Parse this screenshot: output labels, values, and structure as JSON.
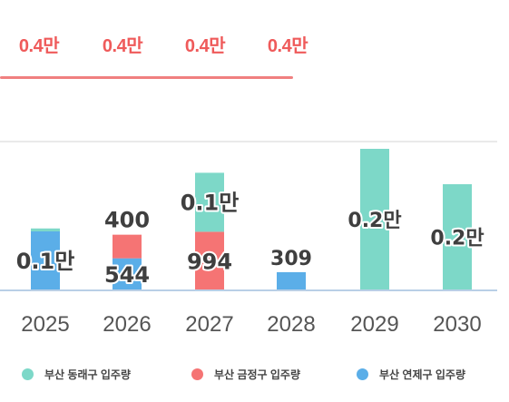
{
  "top_values": [
    "0.4만",
    "0.4만",
    "0.4만",
    "0.4만"
  ],
  "colors": {
    "dongnae": "#7dd8c8",
    "geumjeong": "#f57474",
    "yeonje": "#5baee8",
    "top_text": "#ef5a5a",
    "axis": "#b9cfe6",
    "grid": "#e4e4e4"
  },
  "legend": [
    {
      "label": "부산 동래구 입주량",
      "color_key": "dongnae"
    },
    {
      "label": "부산 금정구 입주량",
      "color_key": "geumjeong"
    },
    {
      "label": "부산 연제구 입주량",
      "color_key": "yeonje"
    }
  ],
  "chart_data": {
    "type": "bar",
    "stacked": true,
    "title": "",
    "xlabel": "",
    "ylabel": "",
    "categories": [
      "2025",
      "2026",
      "2027",
      "2028",
      "2029",
      "2030"
    ],
    "series": [
      {
        "name": "부산 연제구 입주량",
        "color_key": "yeonje",
        "values": [
          1000,
          544,
          0,
          309,
          0,
          0
        ]
      },
      {
        "name": "부산 금정구 입주량",
        "color_key": "geumjeong",
        "values": [
          0,
          400,
          994,
          0,
          0,
          0
        ]
      },
      {
        "name": "부산 동래구 입주량",
        "color_key": "dongnae",
        "values": [
          50,
          0,
          1000,
          0,
          2400,
          1800
        ]
      }
    ],
    "data_labels": [
      {
        "text": "0.1만",
        "category": "2025",
        "series": "부산 연제구 입주량",
        "size": "large"
      },
      {
        "text": "544",
        "category": "2026",
        "series": "부산 연제구 입주량",
        "size": "large"
      },
      {
        "text": "400",
        "category": "2026",
        "series": "부산 금정구 입주량",
        "size": "large",
        "position": "above"
      },
      {
        "text": "994",
        "category": "2027",
        "series": "부산 금정구 입주량",
        "size": "large"
      },
      {
        "text": "0.1만",
        "category": "2027",
        "series": "부산 동래구 입주량",
        "size": "large"
      },
      {
        "text": "309",
        "category": "2028",
        "series": "부산 연제구 입주량",
        "size": "medium",
        "position": "above"
      },
      {
        "text": "0.2만",
        "category": "2029",
        "series": "부산 동래구 입주량",
        "size": "medium"
      },
      {
        "text": "0.2만",
        "category": "2030",
        "series": "부산 동래구 입주량",
        "size": "medium"
      }
    ],
    "ylim": [
      0,
      2400
    ],
    "grid": true,
    "legend_position": "bottom"
  }
}
